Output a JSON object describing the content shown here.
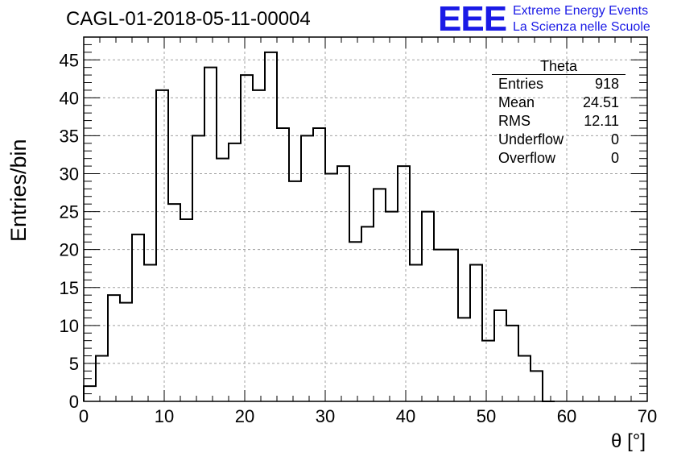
{
  "header": {
    "title": "CAGL-01-2018-05-11-00004",
    "logo_text": "EEE",
    "logo_line1": "Extreme Energy Events",
    "logo_line2": "La Scienza nelle Scuole"
  },
  "stats": {
    "title": "Theta",
    "rows": [
      {
        "label": "Entries",
        "value": "918"
      },
      {
        "label": "Mean",
        "value": "24.51"
      },
      {
        "label": "RMS",
        "value": "12.11"
      },
      {
        "label": "Underflow",
        "value": "0"
      },
      {
        "label": "Overflow",
        "value": "0"
      }
    ]
  },
  "colors": {
    "logo": "#1a1ae6",
    "histogram": "#000000",
    "grid": "#a0a0a0"
  },
  "chart_data": {
    "type": "bar",
    "style": "histogram-step",
    "title": "CAGL-01-2018-05-11-00004",
    "xlabel": "θ [°]",
    "ylabel": "Entries/bin",
    "xlim": [
      0,
      70
    ],
    "ylim": [
      0,
      48
    ],
    "bin_width": 1.5,
    "x_start": 0,
    "values": [
      2,
      6,
      14,
      13,
      22,
      18,
      41,
      26,
      24,
      35,
      44,
      32,
      34,
      43,
      41,
      46,
      36,
      29,
      35,
      36,
      30,
      31,
      21,
      23,
      28,
      25,
      31,
      18,
      25,
      20,
      20,
      11,
      18,
      8,
      12,
      10,
      6,
      4,
      0
    ],
    "xticks": [
      0,
      10,
      20,
      30,
      40,
      50,
      60,
      70
    ],
    "yticks": [
      0,
      5,
      10,
      15,
      20,
      25,
      30,
      35,
      40,
      45
    ],
    "grid": true,
    "legend": "top-right"
  }
}
